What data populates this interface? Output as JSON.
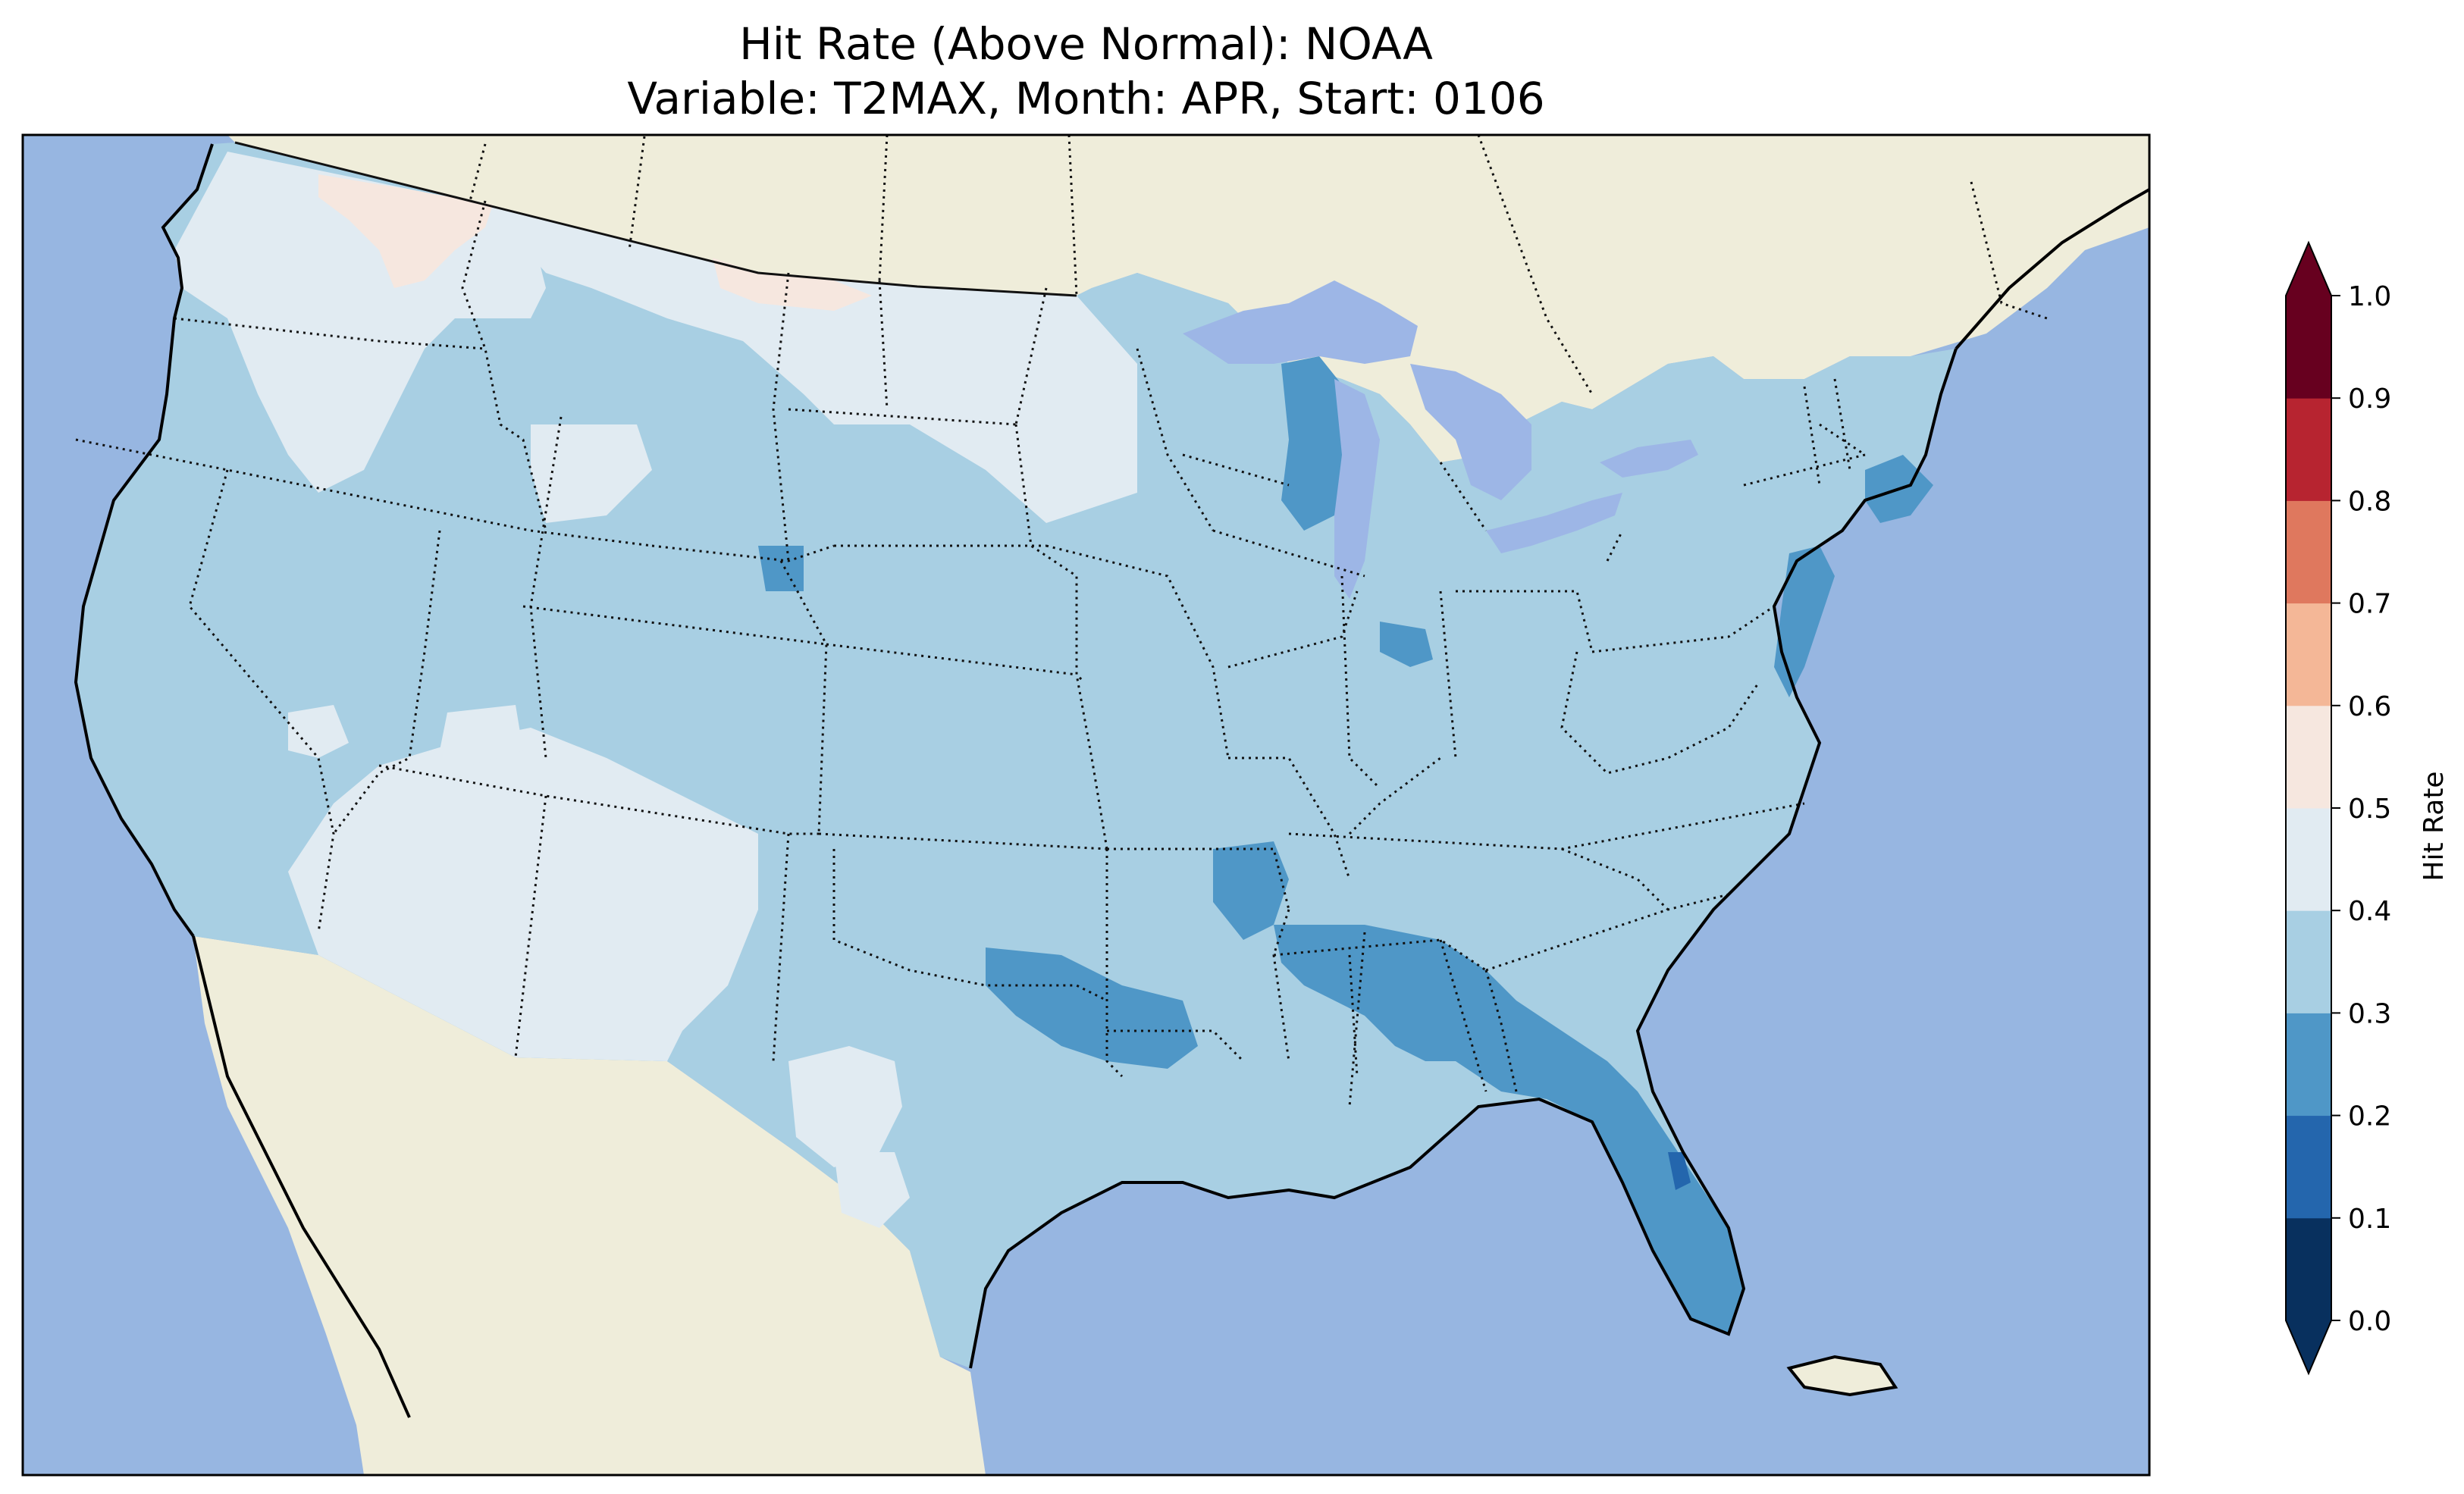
{
  "figure": {
    "title_line1": "Hit Rate (Above Normal): NOAA",
    "title_line2": "Variable: T2MAX, Month: APR, Start: 0106"
  },
  "colors": {
    "ocean": "#97b6e1",
    "land": "#efedda",
    "coast": "#000000"
  },
  "colorbar": {
    "label": "Hit Rate",
    "ticks": [
      "0.0",
      "0.1",
      "0.2",
      "0.3",
      "0.4",
      "0.5",
      "0.6",
      "0.7",
      "0.8",
      "0.9",
      "1.0"
    ],
    "bins": [
      {
        "range": "0.0-0.1",
        "color": "#08305e"
      },
      {
        "range": "0.1-0.2",
        "color": "#2466ad"
      },
      {
        "range": "0.2-0.3",
        "color": "#4f97c7"
      },
      {
        "range": "0.3-0.4",
        "color": "#a8cfe3"
      },
      {
        "range": "0.4-0.5",
        "color": "#e1ebf2"
      },
      {
        "range": "0.5-0.6",
        "color": "#f6e7df"
      },
      {
        "range": "0.6-0.7",
        "color": "#f4b797"
      },
      {
        "range": "0.7-0.8",
        "color": "#df785e"
      },
      {
        "range": "0.8-0.9",
        "color": "#b72430"
      },
      {
        "range": "0.9-1.0",
        "color": "#67001f"
      }
    ],
    "extend": "both"
  },
  "map_data": {
    "region": "Contiguous United States",
    "dominant_class": "0.3-0.4",
    "regions": [
      {
        "name": "west-interior",
        "class": "0.4-0.5"
      },
      {
        "name": "southwest",
        "class": "0.4-0.5"
      },
      {
        "name": "northern-rockies",
        "class": "0.4-0.5"
      },
      {
        "name": "dakotas-minnesota",
        "class": "0.4-0.5"
      },
      {
        "name": "montana-idaho-border",
        "class": "0.5-0.6"
      },
      {
        "name": "gulf-coast-southeast",
        "class": "0.2-0.3"
      },
      {
        "name": "florida",
        "class": "0.2-0.3"
      },
      {
        "name": "lake-michigan-shore",
        "class": "0.2-0.3"
      },
      {
        "name": "mid-atlantic-coast",
        "class": "0.2-0.3"
      },
      {
        "name": "north-texas-oklahoma",
        "class": "0.2-0.3"
      }
    ]
  }
}
